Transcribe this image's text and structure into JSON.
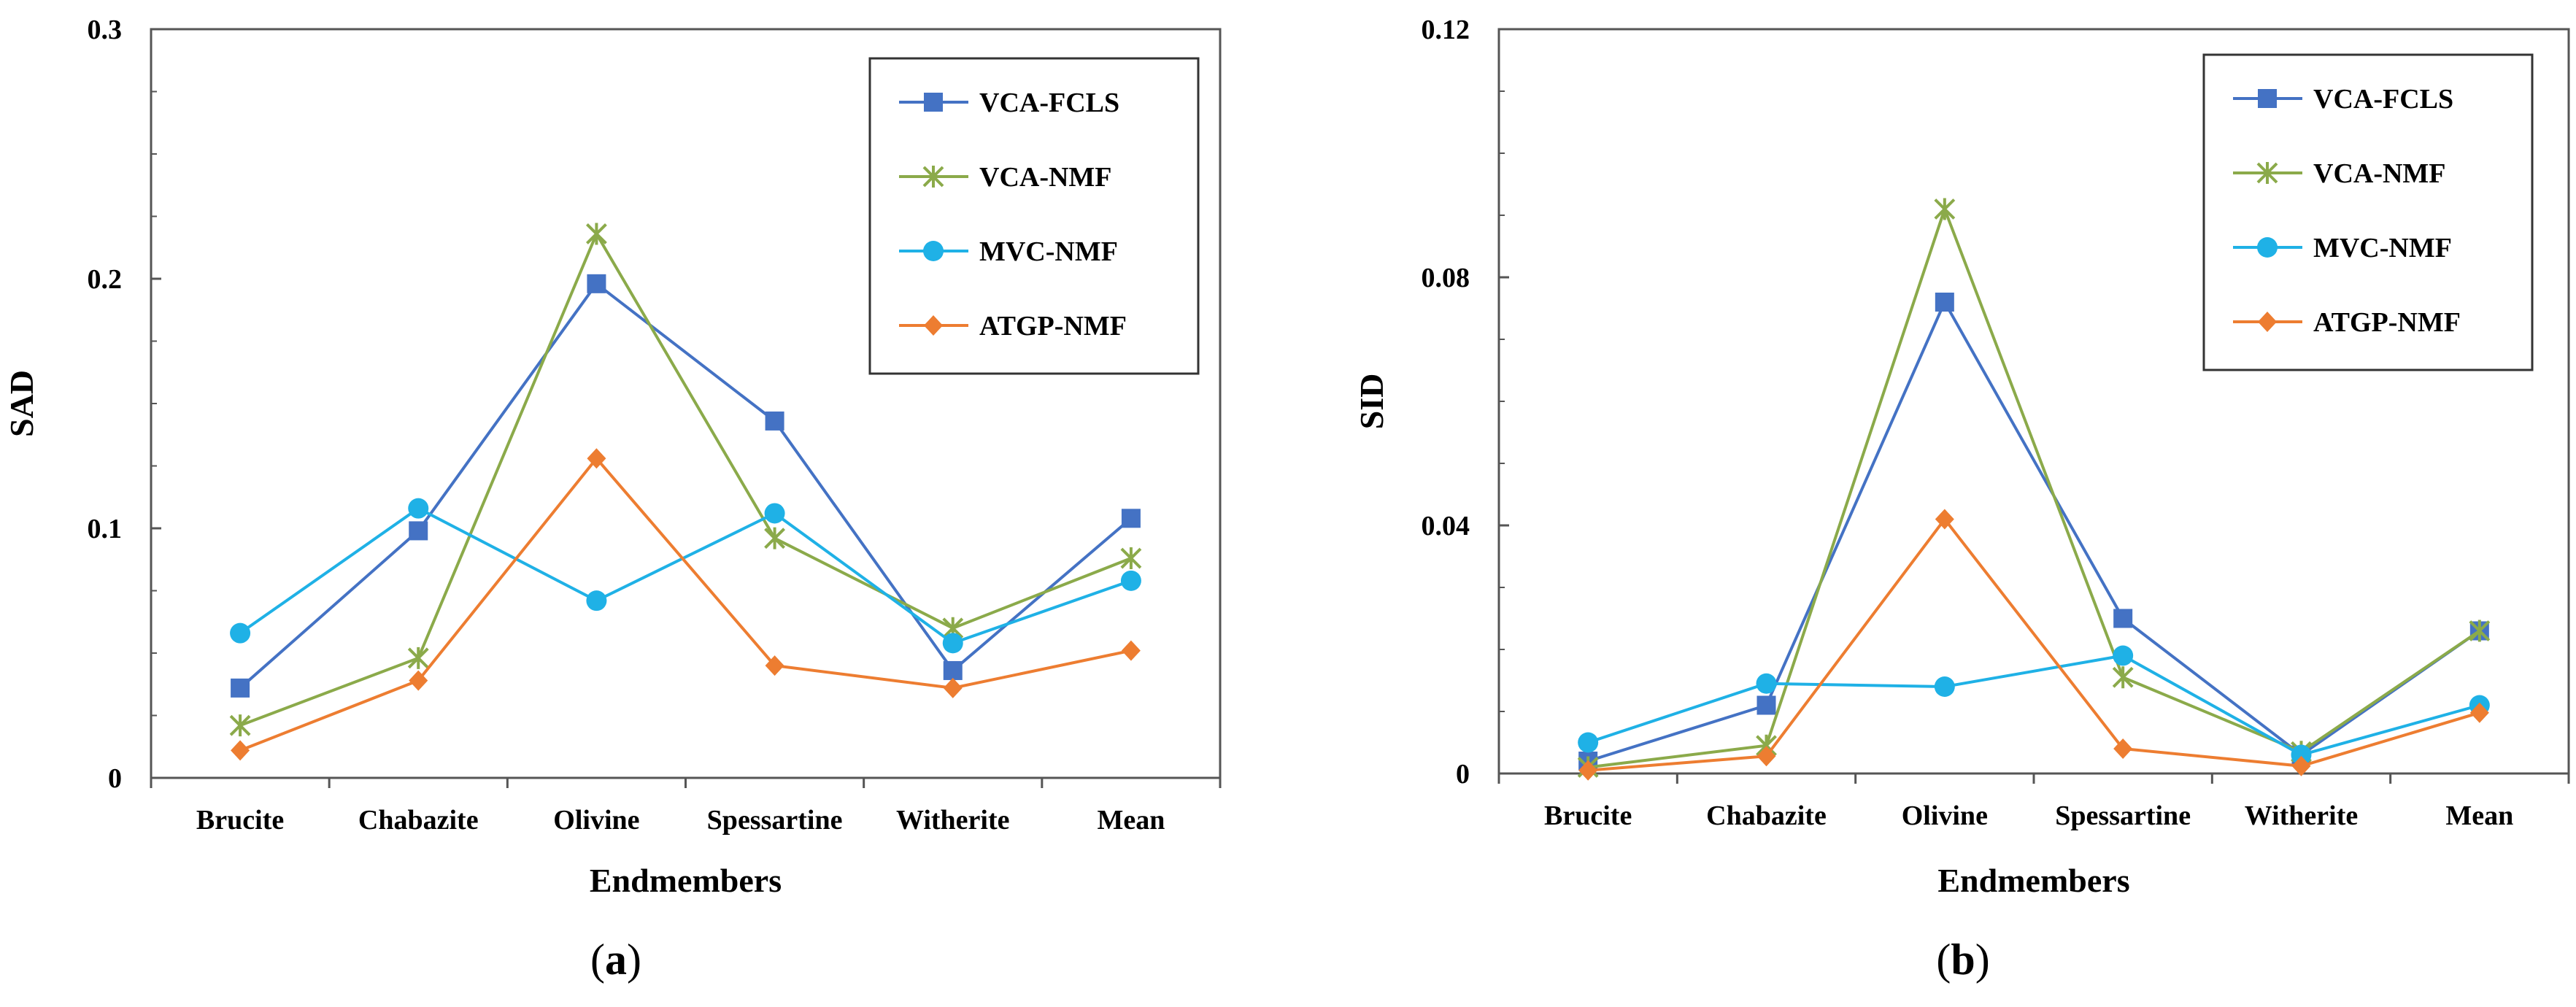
{
  "chart_data": [
    {
      "type": "line",
      "panel_label": "a",
      "title": "",
      "xlabel": "Endmembers",
      "ylabel": "SAD",
      "categories": [
        "Brucite",
        "Chabazite",
        "Olivine",
        "Spessartine",
        "Witherite",
        "Mean"
      ],
      "ylim": [
        0,
        0.3
      ],
      "yticks": [
        0,
        0.1,
        0.2,
        0.3
      ],
      "ytick_labels": [
        "0",
        "0.1",
        "0.2",
        "0.3"
      ],
      "grid": false,
      "legend_position": "top-right",
      "series": [
        {
          "name": "VCA-FCLS",
          "color": "#4472C4",
          "marker": "square",
          "values": [
            0.036,
            0.099,
            0.198,
            0.143,
            0.043,
            0.104
          ]
        },
        {
          "name": "VCA-NMF",
          "color": "#8BAA4A",
          "marker": "star",
          "values": [
            0.021,
            0.048,
            0.218,
            0.096,
            0.06,
            0.088
          ]
        },
        {
          "name": "MVC-NMF",
          "color": "#1FB1E6",
          "marker": "circle",
          "values": [
            0.058,
            0.108,
            0.071,
            0.106,
            0.054,
            0.079
          ]
        },
        {
          "name": "ATGP-NMF",
          "color": "#ED7D31",
          "marker": "diamond",
          "values": [
            0.011,
            0.039,
            0.128,
            0.045,
            0.036,
            0.051
          ]
        }
      ]
    },
    {
      "type": "line",
      "panel_label": "b",
      "title": "",
      "xlabel": "Endmembers",
      "ylabel": "SID",
      "categories": [
        "Brucite",
        "Chabazite",
        "Olivine",
        "Spessartine",
        "Witherite",
        "Mean"
      ],
      "ylim": [
        0,
        0.12
      ],
      "yticks": [
        0,
        0.04,
        0.08,
        0.12
      ],
      "ytick_labels": [
        "0",
        "0.04",
        "0.08",
        "0.12"
      ],
      "grid": false,
      "legend_position": "top-right",
      "series": [
        {
          "name": "VCA-FCLS",
          "color": "#4472C4",
          "marker": "square",
          "values": [
            0.002,
            0.011,
            0.076,
            0.025,
            0.003,
            0.023
          ]
        },
        {
          "name": "VCA-NMF",
          "color": "#8BAA4A",
          "marker": "star",
          "values": [
            0.001,
            0.0045,
            0.091,
            0.0155,
            0.0035,
            0.023
          ]
        },
        {
          "name": "MVC-NMF",
          "color": "#1FB1E6",
          "marker": "circle",
          "values": [
            0.005,
            0.0145,
            0.014,
            0.019,
            0.003,
            0.011
          ]
        },
        {
          "name": "ATGP-NMF",
          "color": "#ED7D31",
          "marker": "diamond",
          "values": [
            0.0005,
            0.0028,
            0.041,
            0.004,
            0.0012,
            0.0098
          ]
        }
      ]
    }
  ]
}
